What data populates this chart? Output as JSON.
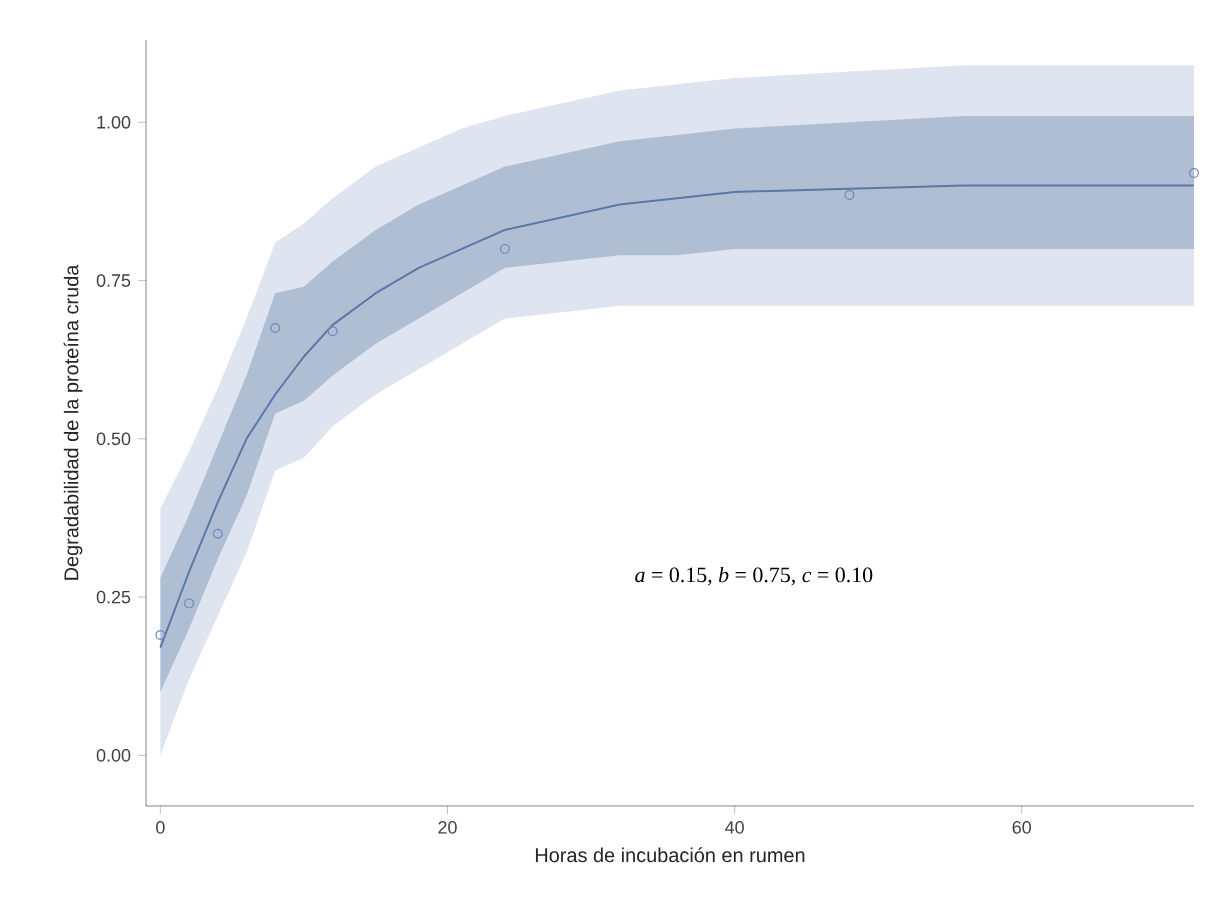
{
  "chart_data": {
    "type": "line",
    "xlabel": "Horas de incubación en rumen",
    "ylabel": "Degradabilidad de la proteína cruda",
    "xlim": [
      -1,
      72
    ],
    "ylim": [
      -0.08,
      1.13
    ],
    "xticks": [
      0,
      20,
      40,
      60
    ],
    "yticks": [
      {
        "value": 0,
        "label": "0.00"
      },
      {
        "value": 0.25,
        "label": "0.25"
      },
      {
        "value": 0.5,
        "label": "0.50"
      },
      {
        "value": 0.75,
        "label": "0.75"
      },
      {
        "value": 1,
        "label": "1.00"
      }
    ],
    "grid": false,
    "annotations": [
      "*a* = 0.15, *b* = 0.75, *c* = 0.10"
    ],
    "series": [
      {
        "type": "scatter",
        "color": "#6a86bd",
        "marker": "circle",
        "x": [
          0,
          2,
          4,
          6,
          8,
          10,
          12,
          15,
          18,
          21,
          24,
          28,
          32,
          36,
          40,
          48,
          56,
          64,
          72
        ],
        "values": [
          0.19,
          0.24,
          0.35,
          null,
          0.675,
          null,
          0.67,
          null,
          null,
          null,
          0.8,
          null,
          null,
          null,
          null,
          0.885,
          null,
          null,
          0.92
        ],
        "lower": [
          0.0,
          0.12,
          0.22,
          0.32,
          0.45,
          0.47,
          0.52,
          0.57,
          0.61,
          0.65,
          0.69,
          0.7,
          0.71,
          0.71,
          0.71,
          0.71,
          0.71,
          0.71,
          0.71
        ],
        "upper": [
          0.39,
          0.48,
          0.58,
          0.69,
          0.81,
          0.84,
          0.88,
          0.93,
          0.96,
          0.99,
          1.01,
          1.03,
          1.05,
          1.06,
          1.07,
          1.08,
          1.09,
          1.09,
          1.09
        ]
      },
      {
        "color": "#5a78a6",
        "line_style": "solid",
        "marker": "none",
        "x": [
          0,
          2,
          4,
          6,
          8,
          10,
          12,
          15,
          18,
          21,
          24,
          28,
          32,
          36,
          40,
          48,
          56,
          64,
          72
        ],
        "values": [
          0.17,
          0.29,
          0.4,
          0.5,
          0.57,
          0.63,
          0.68,
          0.73,
          0.77,
          0.8,
          0.83,
          0.85,
          0.87,
          0.88,
          0.89,
          0.895,
          0.9,
          0.9,
          0.9
        ],
        "lower": [
          0.1,
          0.2,
          0.31,
          0.41,
          0.54,
          0.56,
          0.6,
          0.65,
          0.69,
          0.73,
          0.77,
          0.78,
          0.79,
          0.79,
          0.8,
          0.8,
          0.8,
          0.8,
          0.8
        ],
        "upper": [
          0.28,
          0.38,
          0.49,
          0.6,
          0.73,
          0.74,
          0.78,
          0.83,
          0.87,
          0.9,
          0.93,
          0.95,
          0.97,
          0.98,
          0.99,
          1.0,
          1.01,
          1.01,
          1.01
        ]
      }
    ]
  }
}
